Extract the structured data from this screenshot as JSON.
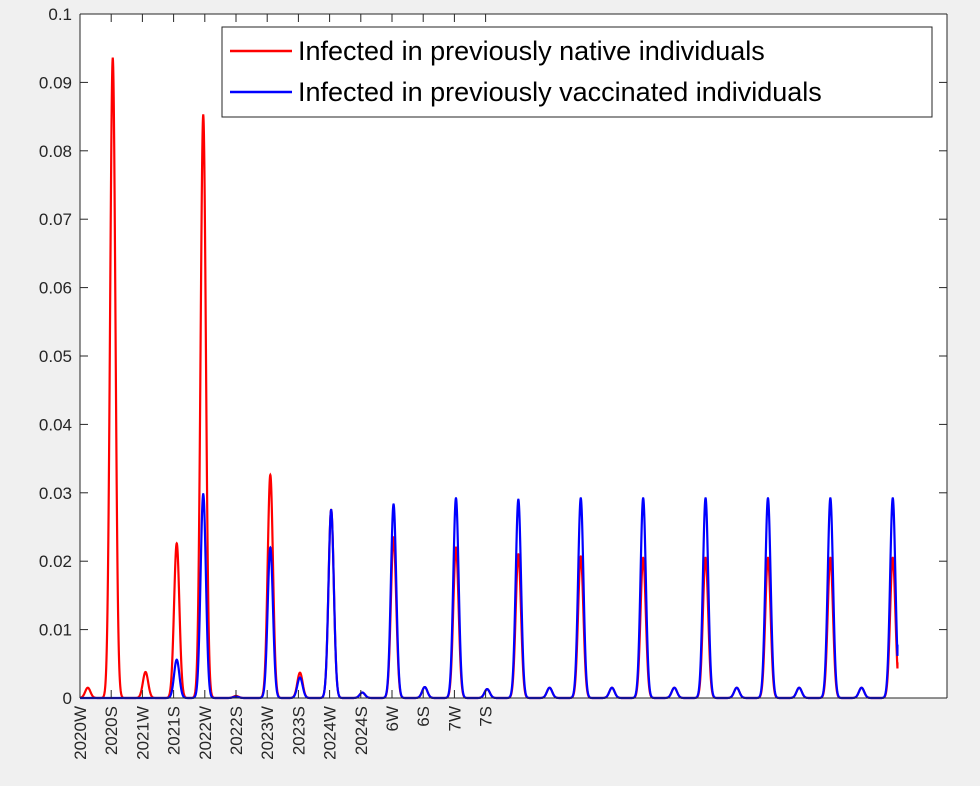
{
  "chart_data": {
    "type": "line",
    "title": "",
    "xlabel": "",
    "ylabel": "",
    "ylim": [
      0,
      0.1
    ],
    "yticks": [
      "0",
      "0.01",
      "0.02",
      "0.03",
      "0.04",
      "0.05",
      "0.06",
      "0.07",
      "0.08",
      "0.09",
      "0.1"
    ],
    "xlim": [
      0,
      28
    ],
    "xticks": [
      {
        "x": 0,
        "label": "2020W"
      },
      {
        "x": 1,
        "label": "2020S"
      },
      {
        "x": 2,
        "label": "2021W"
      },
      {
        "x": 3,
        "label": "2021S"
      },
      {
        "x": 4,
        "label": "2022W"
      },
      {
        "x": 5,
        "label": "2022S"
      },
      {
        "x": 6,
        "label": "2023W"
      },
      {
        "x": 7,
        "label": "2023S"
      },
      {
        "x": 8,
        "label": "2024W"
      },
      {
        "x": 9,
        "label": "2024S"
      },
      {
        "x": 10,
        "label": "6W"
      },
      {
        "x": 11,
        "label": "6S"
      },
      {
        "x": 12,
        "label": "7W"
      },
      {
        "x": 13,
        "label": "7S"
      }
    ],
    "legend_position": "top-right",
    "grid": false,
    "series": [
      {
        "name": "Infected in previously native individuals",
        "color": "#ff0000",
        "peaks": [
          {
            "x": 0.25,
            "y": 0.0015
          },
          {
            "x": 1.05,
            "y": 0.0935
          },
          {
            "x": 2.1,
            "y": 0.0038
          },
          {
            "x": 3.1,
            "y": 0.0226
          },
          {
            "x": 3.95,
            "y": 0.0852
          },
          {
            "x": 5.0,
            "y": 0.0003
          },
          {
            "x": 6.1,
            "y": 0.0326
          },
          {
            "x": 7.05,
            "y": 0.0037
          },
          {
            "x": 8.05,
            "y": 0.0275
          },
          {
            "x": 9.05,
            "y": 0.0008
          },
          {
            "x": 10.05,
            "y": 0.0235
          },
          {
            "x": 11.05,
            "y": 0.0016
          },
          {
            "x": 12.05,
            "y": 0.022
          },
          {
            "x": 13.05,
            "y": 0.0013
          },
          {
            "x": 14.05,
            "y": 0.021
          },
          {
            "x": 15.05,
            "y": 0.0015
          },
          {
            "x": 16.05,
            "y": 0.0207
          },
          {
            "x": 17.05,
            "y": 0.0015
          },
          {
            "x": 18.05,
            "y": 0.0205
          },
          {
            "x": 19.05,
            "y": 0.0015
          },
          {
            "x": 20.05,
            "y": 0.0205
          },
          {
            "x": 21.05,
            "y": 0.0015
          },
          {
            "x": 22.05,
            "y": 0.0205
          },
          {
            "x": 23.05,
            "y": 0.0015
          },
          {
            "x": 24.05,
            "y": 0.0205
          },
          {
            "x": 25.05,
            "y": 0.0015
          },
          {
            "x": 26.05,
            "y": 0.0205
          }
        ],
        "end": {
          "x": 26.2,
          "y": 0.0052
        }
      },
      {
        "name": "Infected in previously vaccinated individuals",
        "color": "#0000ff",
        "peaks": [
          {
            "x": 3.1,
            "y": 0.0056
          },
          {
            "x": 3.95,
            "y": 0.0298
          },
          {
            "x": 5.0,
            "y": 0.0002
          },
          {
            "x": 6.1,
            "y": 0.022
          },
          {
            "x": 7.05,
            "y": 0.003
          },
          {
            "x": 8.05,
            "y": 0.0275
          },
          {
            "x": 9.05,
            "y": 0.0008
          },
          {
            "x": 10.05,
            "y": 0.0283
          },
          {
            "x": 11.05,
            "y": 0.0016
          },
          {
            "x": 12.05,
            "y": 0.0292
          },
          {
            "x": 13.05,
            "y": 0.0013
          },
          {
            "x": 14.05,
            "y": 0.029
          },
          {
            "x": 15.05,
            "y": 0.0015
          },
          {
            "x": 16.05,
            "y": 0.0292
          },
          {
            "x": 17.05,
            "y": 0.0015
          },
          {
            "x": 18.05,
            "y": 0.0292
          },
          {
            "x": 19.05,
            "y": 0.0015
          },
          {
            "x": 20.05,
            "y": 0.0292
          },
          {
            "x": 21.05,
            "y": 0.0015
          },
          {
            "x": 22.05,
            "y": 0.0292
          },
          {
            "x": 23.05,
            "y": 0.0015
          },
          {
            "x": 24.05,
            "y": 0.0292
          },
          {
            "x": 25.05,
            "y": 0.0015
          },
          {
            "x": 26.05,
            "y": 0.0292
          }
        ],
        "end": {
          "x": 26.2,
          "y": 0.0078
        }
      }
    ]
  }
}
